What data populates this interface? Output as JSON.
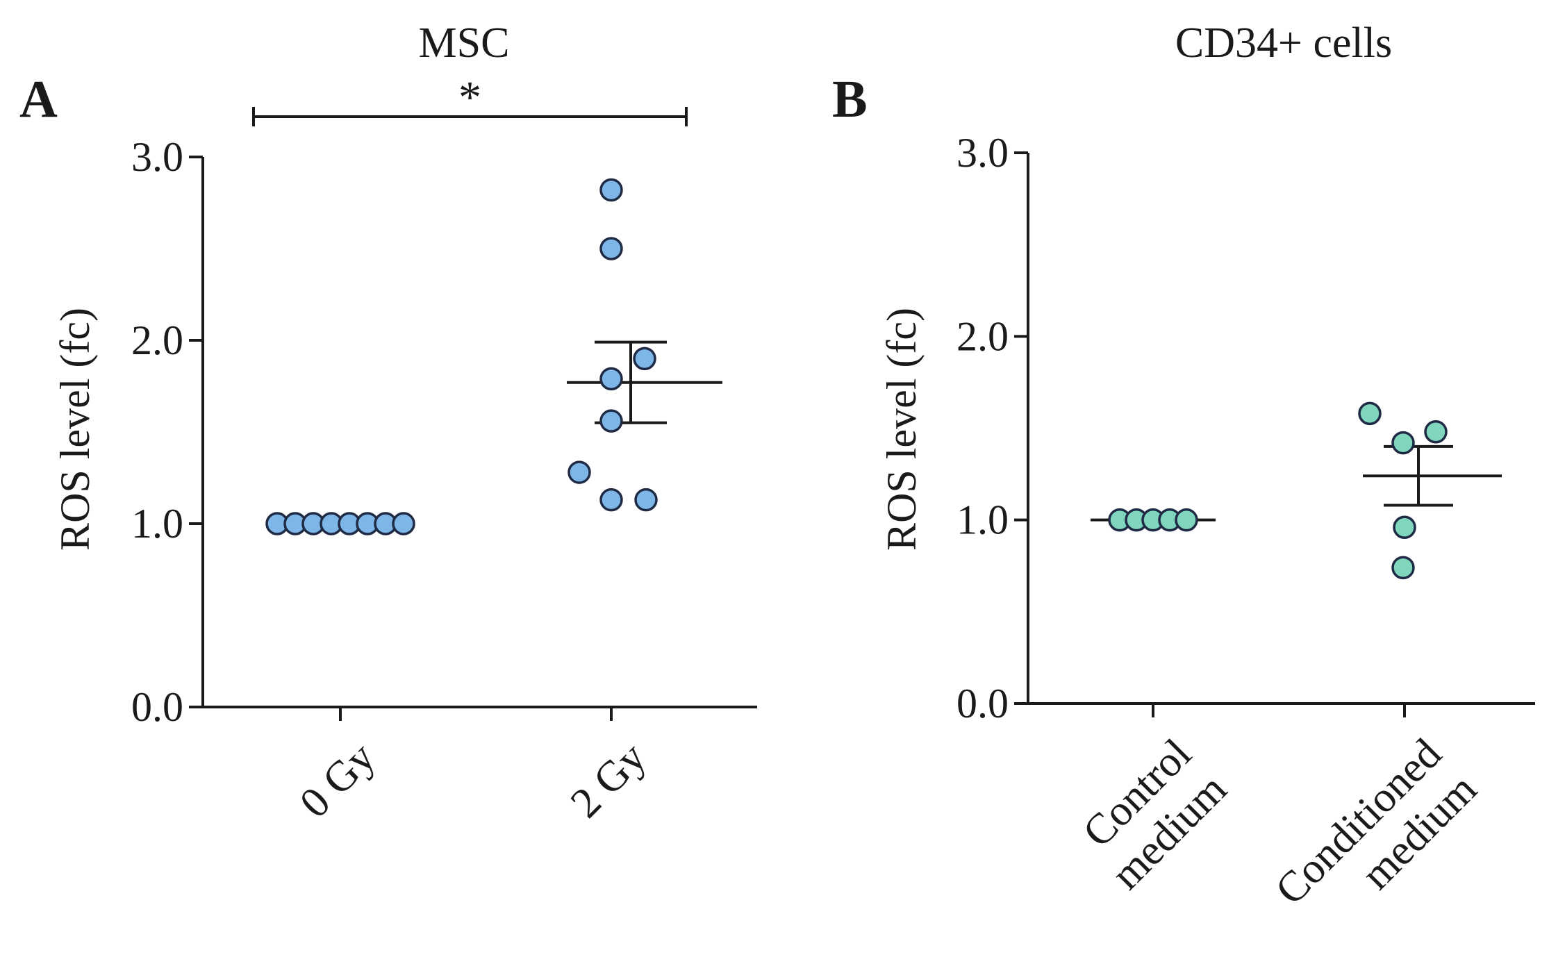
{
  "chart_data": [
    {
      "panel": "A",
      "type": "scatter",
      "title": "MSC",
      "ylabel": "ROS level (fc)",
      "xlabel": "",
      "ylim": [
        0,
        3
      ],
      "yticks": [
        "0.0",
        "1.0",
        "2.0",
        "3.0"
      ],
      "grid": false,
      "legend": "none",
      "marker_color": "#7eb6e8",
      "marker_edge": "#1f2a44",
      "categories": [
        "0 Gy",
        "2 Gy"
      ],
      "series": [
        {
          "name": "0 Gy",
          "values": [
            1.0,
            1.0,
            1.0,
            1.0,
            1.0,
            1.0,
            1.0,
            1.0
          ]
        },
        {
          "name": "2 Gy",
          "values": [
            2.82,
            2.5,
            1.9,
            1.79,
            1.56,
            1.28,
            1.13,
            1.13
          ]
        }
      ],
      "mean": [
        1.0,
        1.77
      ],
      "sem": [
        0.0,
        0.22
      ],
      "significance": {
        "label": "*",
        "between": [
          "0 Gy",
          "2 Gy"
        ]
      }
    },
    {
      "panel": "B",
      "type": "scatter",
      "title": "CD34+ cells",
      "ylabel": "ROS level (fc)",
      "xlabel": "",
      "ylim": [
        0,
        3
      ],
      "yticks": [
        "0.0",
        "1.0",
        "2.0",
        "3.0"
      ],
      "grid": false,
      "legend": "none",
      "marker_color": "#7fd6bd",
      "marker_edge": "#1f2a44",
      "categories": [
        "Control medium",
        "Conditioned medium"
      ],
      "category_lines": [
        [
          "Control",
          "medium"
        ],
        [
          "Conditioned",
          "medium"
        ]
      ],
      "series": [
        {
          "name": "Control medium",
          "values": [
            1.0,
            1.0,
            1.0,
            1.0,
            1.0
          ]
        },
        {
          "name": "Conditioned medium",
          "values": [
            1.58,
            1.48,
            1.42,
            0.96,
            0.74
          ]
        }
      ],
      "mean": [
        1.0,
        1.24
      ],
      "sem": [
        0.0,
        0.16
      ]
    }
  ]
}
